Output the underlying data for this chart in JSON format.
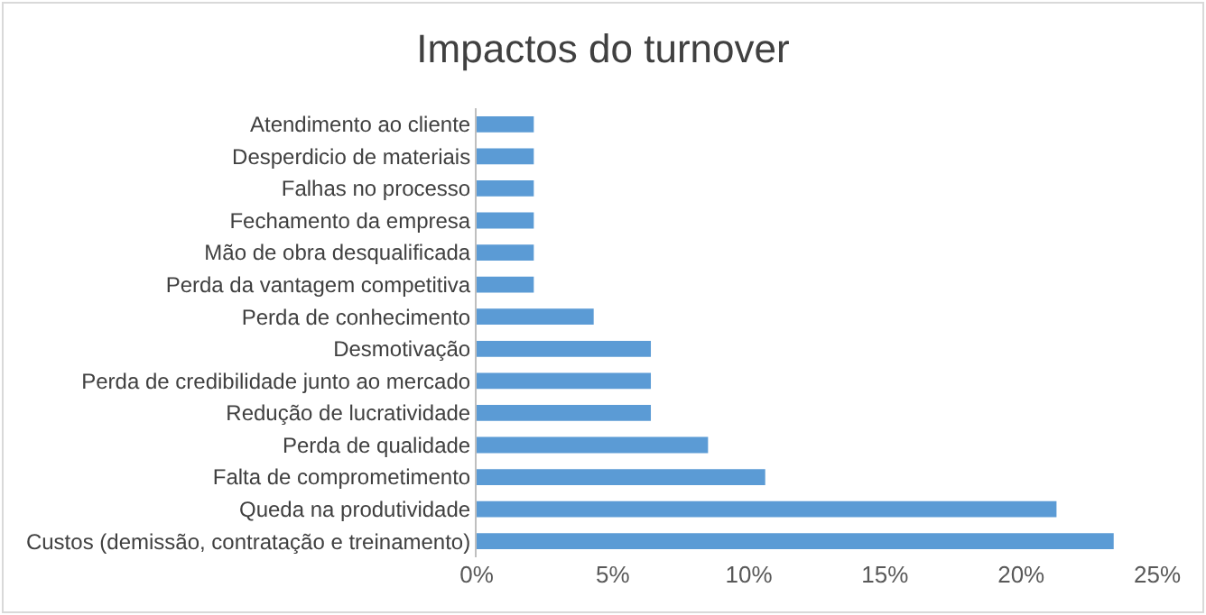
{
  "chart_data": {
    "type": "bar",
    "orientation": "horizontal",
    "title": "Impactos do turnover",
    "categories": [
      "Atendimento ao cliente",
      "Desperdicio de materiais",
      "Falhas no processo",
      "Fechamento da empresa",
      "Mão de obra desqualificada",
      "Perda da vantagem competitiva",
      "Perda de conhecimento",
      "Desmotivação",
      "Perda de credibilidade junto ao mercado",
      "Redução de lucratividade",
      "Perda de qualidade",
      "Falta de comprometimento",
      "Queda na produtividade",
      "Custos (demissão, contratação e treinamento)"
    ],
    "values": [
      2.1,
      2.1,
      2.1,
      2.1,
      2.1,
      2.1,
      4.3,
      6.4,
      6.4,
      6.4,
      8.5,
      10.6,
      21.3,
      23.4
    ],
    "color": "#5b9bd5",
    "xlim": [
      0,
      25
    ],
    "xticks": [
      {
        "value": 0,
        "label": "0%"
      },
      {
        "value": 5,
        "label": "5%"
      },
      {
        "value": 10,
        "label": "10%"
      },
      {
        "value": 15,
        "label": "15%"
      },
      {
        "value": 20,
        "label": "20%"
      },
      {
        "value": 25,
        "label": "25%"
      }
    ],
    "grid": false
  }
}
